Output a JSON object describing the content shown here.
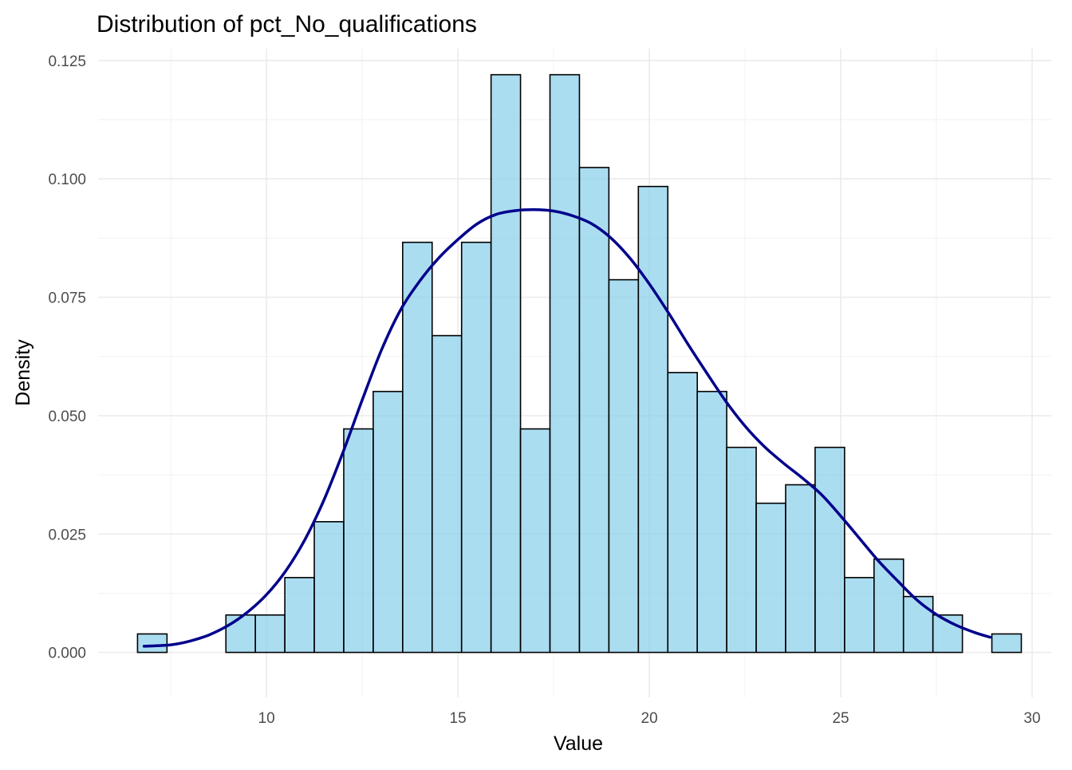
{
  "chart_data": {
    "type": "bar",
    "subtype": "histogram-with-density",
    "title": "Distribution of pct_No_qualifications",
    "xlabel": "Value",
    "ylabel": "Density",
    "xlim": [
      5.6,
      30.5
    ],
    "ylim": [
      -0.0095,
      0.1275
    ],
    "x_ticks": [
      10,
      15,
      20,
      25,
      30
    ],
    "x_tick_labels": [
      "10",
      "15",
      "20",
      "25",
      "30"
    ],
    "y_ticks": [
      0,
      0.025,
      0.05,
      0.075,
      0.1,
      0.125
    ],
    "y_tick_labels": [
      "0.000",
      "0.025",
      "0.050",
      "0.075",
      "0.100",
      "0.125"
    ],
    "grid": true,
    "bins": {
      "start": 6.63,
      "width": 0.7696,
      "values": [
        0.0039,
        0,
        0,
        0.0079,
        0.0079,
        0.0158,
        0.0276,
        0.0472,
        0.0551,
        0.0866,
        0.0669,
        0.0866,
        0.122,
        0.0472,
        0.122,
        0.1024,
        0.0787,
        0.0984,
        0.0591,
        0.0551,
        0.0433,
        0.0315,
        0.0354,
        0.0433,
        0.0158,
        0.0197,
        0.0118,
        0.0079,
        0,
        0.0039
      ]
    },
    "density_curve": {
      "x": [
        6.8,
        7.5,
        8.0,
        8.5,
        9.0,
        9.5,
        10.0,
        10.5,
        11.0,
        11.5,
        12.0,
        12.5,
        13.0,
        13.5,
        14.0,
        14.5,
        15.0,
        15.5,
        16.0,
        16.5,
        17.0,
        17.5,
        18.0,
        18.5,
        19.0,
        19.5,
        20.0,
        20.5,
        21.0,
        21.5,
        22.0,
        22.5,
        23.0,
        23.5,
        24.0,
        24.5,
        25.0,
        25.5,
        26.0,
        26.5,
        27.0,
        27.5,
        28.0,
        28.5,
        28.9
      ],
      "y": [
        0.0013,
        0.0016,
        0.0024,
        0.0037,
        0.0057,
        0.0085,
        0.0122,
        0.0172,
        0.0238,
        0.0322,
        0.0423,
        0.0533,
        0.0638,
        0.0723,
        0.0784,
        0.0833,
        0.0872,
        0.0905,
        0.0925,
        0.0933,
        0.0935,
        0.0932,
        0.0922,
        0.0905,
        0.0875,
        0.0832,
        0.0778,
        0.0717,
        0.0652,
        0.059,
        0.053,
        0.0478,
        0.0435,
        0.04,
        0.0368,
        0.0333,
        0.0288,
        0.024,
        0.0192,
        0.015,
        0.011,
        0.008,
        0.0058,
        0.0042,
        0.0032
      ]
    },
    "colors": {
      "bar_fill": "#87ceeb",
      "bar_fill_opacity": 0.7,
      "bar_outline": "#000000",
      "density_line": "#00008b",
      "grid": "#ebebeb",
      "background": "#ffffff"
    }
  }
}
